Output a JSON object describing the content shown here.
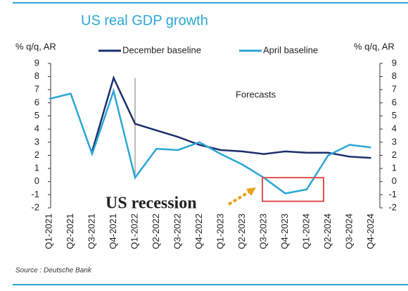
{
  "chart_data": {
    "type": "line",
    "title": "US real GDP growth",
    "y_label": "% q/q, AR",
    "y2_label": "% q/q, AR",
    "categories": [
      "Q1-2021",
      "Q2-2021",
      "Q3-2021",
      "Q4-2021",
      "Q1-2022",
      "Q2-2022",
      "Q3-2022",
      "Q4-2022",
      "Q1-2023",
      "Q2-2023",
      "Q3-2023",
      "Q4-2023",
      "Q1-2024",
      "Q2-2024",
      "Q3-2024",
      "Q4-2024"
    ],
    "series": [
      {
        "name": "December baseline",
        "color": "#1b2f6b",
        "values": [
          null,
          null,
          2.3,
          7.9,
          4.4,
          3.9,
          3.4,
          2.8,
          2.4,
          2.3,
          2.1,
          2.3,
          2.2,
          2.2,
          1.9,
          1.8
        ]
      },
      {
        "name": "April baseline",
        "color": "#2aa6d6",
        "values": [
          6.3,
          6.7,
          2.1,
          6.9,
          0.3,
          2.5,
          2.4,
          3.0,
          2.1,
          1.3,
          0.3,
          -0.9,
          -0.6,
          2.0,
          2.8,
          2.6
        ]
      }
    ],
    "ylim": [
      -2,
      9
    ],
    "yticks": [
      -2,
      -1,
      0,
      1,
      2,
      3,
      4,
      5,
      6,
      7,
      8,
      9
    ],
    "y2lim": [
      -2,
      9
    ],
    "y2ticks": [
      -2,
      -1,
      0,
      1,
      2,
      3,
      4,
      5,
      6,
      7,
      8,
      9
    ],
    "forecast_annotation": "Forecasts",
    "recession_annotation": "US recession",
    "source": "Source : Deutsche Bank"
  }
}
